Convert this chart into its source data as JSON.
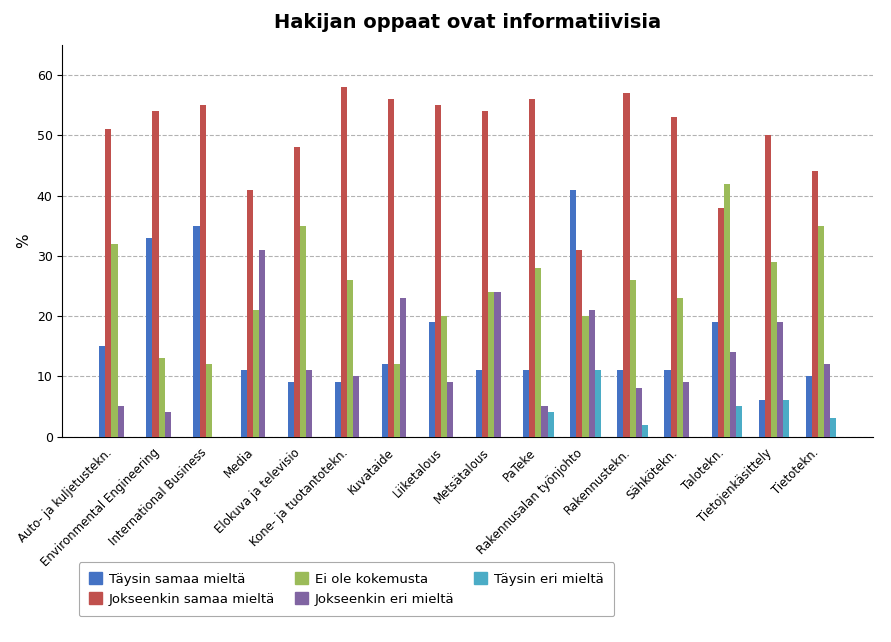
{
  "title": "Hakijan oppaat ovat informatiivisia",
  "ylabel": "%",
  "categories": [
    "Auto- ja kuljetustekn.",
    "Environmental Engineering",
    "International Business",
    "Media",
    "Elokuva ja televisio",
    "Kone- ja tuotantotekn.",
    "Kuvataide",
    "Liiketalous",
    "Metsätalous",
    "PaTeke",
    "Rakennusalan työnjohto",
    "Rakennustekn.",
    "Sähkötekn.",
    "Talotekn.",
    "Tietojenkäsittely",
    "Tietotekn."
  ],
  "series": {
    "Täysin samaa mieltä": [
      15,
      33,
      35,
      11,
      9,
      9,
      12,
      19,
      11,
      11,
      41,
      11,
      11,
      19,
      6,
      10
    ],
    "Jokseenkin samaa mieltä": [
      51,
      54,
      55,
      41,
      48,
      58,
      56,
      55,
      54,
      56,
      31,
      57,
      53,
      38,
      50,
      44
    ],
    "Ei ole kokemusta": [
      32,
      13,
      12,
      21,
      35,
      26,
      12,
      20,
      24,
      28,
      20,
      26,
      23,
      42,
      29,
      35
    ],
    "Jokseenkin eri mieltä": [
      5,
      4,
      0,
      31,
      11,
      10,
      23,
      9,
      24,
      5,
      21,
      8,
      9,
      14,
      19,
      12
    ],
    "Täysin eri mieltä": [
      0,
      0,
      0,
      0,
      0,
      0,
      0,
      0,
      0,
      4,
      11,
      2,
      0,
      5,
      6,
      3
    ]
  },
  "colors": {
    "Täysin samaa mieltä": "#4472C4",
    "Jokseenkin samaa mieltä": "#C0504D",
    "Ei ole kokemusta": "#9BBB59",
    "Jokseenkin eri mieltä": "#8064A2",
    "Täysin eri mieltä": "#4BACC6"
  },
  "ylim": [
    0,
    65
  ],
  "yticks": [
    0,
    10,
    20,
    30,
    40,
    50,
    60
  ],
  "bar_width": 0.13,
  "legend_row1": [
    "Täysin samaa mieltä",
    "Jokseenkin samaa mieltä",
    "Ei ole kokemusta"
  ],
  "legend_row2": [
    "Jokseenkin eri mieltä",
    "Täysin eri mieltä"
  ],
  "legend_order": [
    "Täysin samaa mieltä",
    "Jokseenkin samaa mieltä",
    "Ei ole kokemusta",
    "Jokseenkin eri mieltä",
    "Täysin eri mieltä"
  ],
  "bg_color": "#FFFFFF",
  "fig_bg": "#F0F0F0"
}
